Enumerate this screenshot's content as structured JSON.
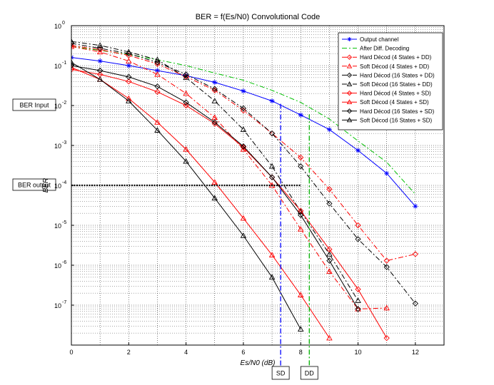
{
  "chart_data": {
    "type": "line",
    "title": "BER = f(Es/N0)  Convolutional Code",
    "xlabel": "Es/N0  (dB)",
    "ylabel": "BER",
    "xlim": [
      0,
      13
    ],
    "ylim_log10": [
      -8,
      0
    ],
    "yscale": "log",
    "grid": "on",
    "legend_position": "top-right",
    "x_tick_labels": [
      "0",
      "2",
      "4",
      "6",
      "8",
      "10",
      "12"
    ],
    "y_tick_labels": [
      {
        "base": "10",
        "exp": "-7"
      },
      {
        "base": "10",
        "exp": "-6"
      },
      {
        "base": "10",
        "exp": "-5"
      },
      {
        "base": "10",
        "exp": "-4"
      },
      {
        "base": "10",
        "exp": "-3"
      },
      {
        "base": "10",
        "exp": "-2"
      },
      {
        "base": "10",
        "exp": "-1"
      },
      {
        "base": "10",
        "exp": "0"
      }
    ],
    "series": [
      {
        "name": "Output channel",
        "color": "#0000ff",
        "dash": "solid",
        "marker": "star",
        "x": [
          0,
          1,
          2,
          3,
          4,
          5,
          6,
          7,
          8,
          9,
          10,
          11,
          12
        ],
        "y": [
          0.16,
          0.13,
          0.1,
          0.075,
          0.056,
          0.038,
          0.023,
          0.013,
          0.0058,
          0.0025,
          0.00075,
          0.0002,
          3e-05
        ]
      },
      {
        "name": "After Diff. Decoding",
        "color": "#00c000",
        "dash": "dashdot",
        "marker": "none",
        "x": [
          0,
          1,
          2,
          3,
          4,
          5,
          6,
          7,
          8,
          9,
          10,
          11,
          12
        ],
        "y": [
          0.3,
          0.24,
          0.19,
          0.14,
          0.1,
          0.065,
          0.043,
          0.024,
          0.012,
          0.0046,
          0.0013,
          0.00038,
          6e-05
        ]
      },
      {
        "name": "Hard Décod (4 States + DD)",
        "color": "#ff0000",
        "dash": "dashdot",
        "marker": "diamond",
        "x": [
          0,
          1,
          2,
          3,
          4,
          5,
          6,
          7,
          8,
          9,
          10,
          11,
          12
        ],
        "y": [
          0.32,
          0.25,
          0.18,
          0.11,
          0.053,
          0.024,
          0.0075,
          0.002,
          0.0005,
          8e-05,
          1e-05,
          1.3e-06,
          1.9e-06
        ]
      },
      {
        "name": "Soft Décod (4 States + DD)",
        "color": "#ff0000",
        "dash": "dashdot",
        "marker": "triangle",
        "x": [
          0,
          1,
          2,
          3,
          4,
          5,
          6,
          7,
          8,
          9,
          10,
          11
        ],
        "y": [
          0.3,
          0.22,
          0.13,
          0.06,
          0.02,
          0.005,
          0.0008,
          0.0001,
          8e-06,
          7e-07,
          8e-08,
          8.5e-08
        ]
      },
      {
        "name": "Hard Décod (16 States + DD)",
        "color": "#000000",
        "dash": "dashdot",
        "marker": "diamond",
        "x": [
          0,
          1,
          2,
          3,
          4,
          5,
          6,
          7,
          8,
          9,
          10,
          11,
          12
        ],
        "y": [
          0.36,
          0.27,
          0.2,
          0.12,
          0.06,
          0.026,
          0.0085,
          0.002,
          0.0003,
          3.5e-05,
          4.5e-06,
          9e-07,
          1.1e-07
        ]
      },
      {
        "name": "Soft Décod (16 States + DD)",
        "color": "#000000",
        "dash": "dashdot",
        "marker": "triangle",
        "x": [
          0,
          1,
          2,
          3,
          4,
          5,
          6,
          7,
          8,
          9,
          10
        ],
        "y": [
          0.4,
          0.32,
          0.22,
          0.14,
          0.05,
          0.013,
          0.0025,
          0.0003,
          2.2e-05,
          1.9e-06,
          1.3e-07
        ]
      },
      {
        "name": "Hard Décod (4 States + SD)",
        "color": "#ff0000",
        "dash": "solid",
        "marker": "diamond",
        "x": [
          0,
          1,
          2,
          3,
          4,
          5,
          6,
          7,
          8,
          9,
          10,
          11
        ],
        "y": [
          0.08,
          0.06,
          0.04,
          0.022,
          0.01,
          0.0035,
          0.0009,
          0.00016,
          2.3e-05,
          2.5e-06,
          2.5e-07,
          1.5e-08
        ]
      },
      {
        "name": "Soft Décod (4 States + SD)",
        "color": "#ff0000",
        "dash": "solid",
        "marker": "triangle",
        "x": [
          0,
          1,
          2,
          3,
          4,
          5,
          6,
          7,
          8,
          9
        ],
        "y": [
          0.09,
          0.045,
          0.015,
          0.0038,
          0.0008,
          0.00012,
          1.5e-05,
          1.8e-06,
          1.8e-07,
          1.5e-08
        ]
      },
      {
        "name": "Hard Décod (16 States + SD)",
        "color": "#000000",
        "dash": "solid",
        "marker": "diamond",
        "x": [
          0,
          1,
          2,
          3,
          4,
          5,
          6,
          7,
          8,
          9,
          10
        ],
        "y": [
          0.1,
          0.075,
          0.052,
          0.03,
          0.012,
          0.0038,
          0.00095,
          0.00016,
          1.8e-05,
          1.3e-06,
          8e-08
        ]
      },
      {
        "name": "Soft Décod (16 States + SD)",
        "color": "#000000",
        "dash": "solid",
        "marker": "triangle",
        "x": [
          0,
          1,
          2,
          3,
          4,
          5,
          6,
          7,
          8
        ],
        "y": [
          0.12,
          0.045,
          0.013,
          0.0024,
          0.0004,
          4.8e-05,
          5.5e-06,
          5e-07,
          2.5e-08
        ]
      }
    ],
    "annotations": {
      "ber_input": {
        "label": "BER Input",
        "y": 0.01
      },
      "ber_output": {
        "label": "BER output",
        "y": 0.0001,
        "x_end": 8
      },
      "sd": {
        "label": "SD",
        "x": 7.3,
        "color": "#0000ff"
      },
      "dd": {
        "label": "DD",
        "x": 8.3,
        "color": "#00b000"
      }
    }
  }
}
